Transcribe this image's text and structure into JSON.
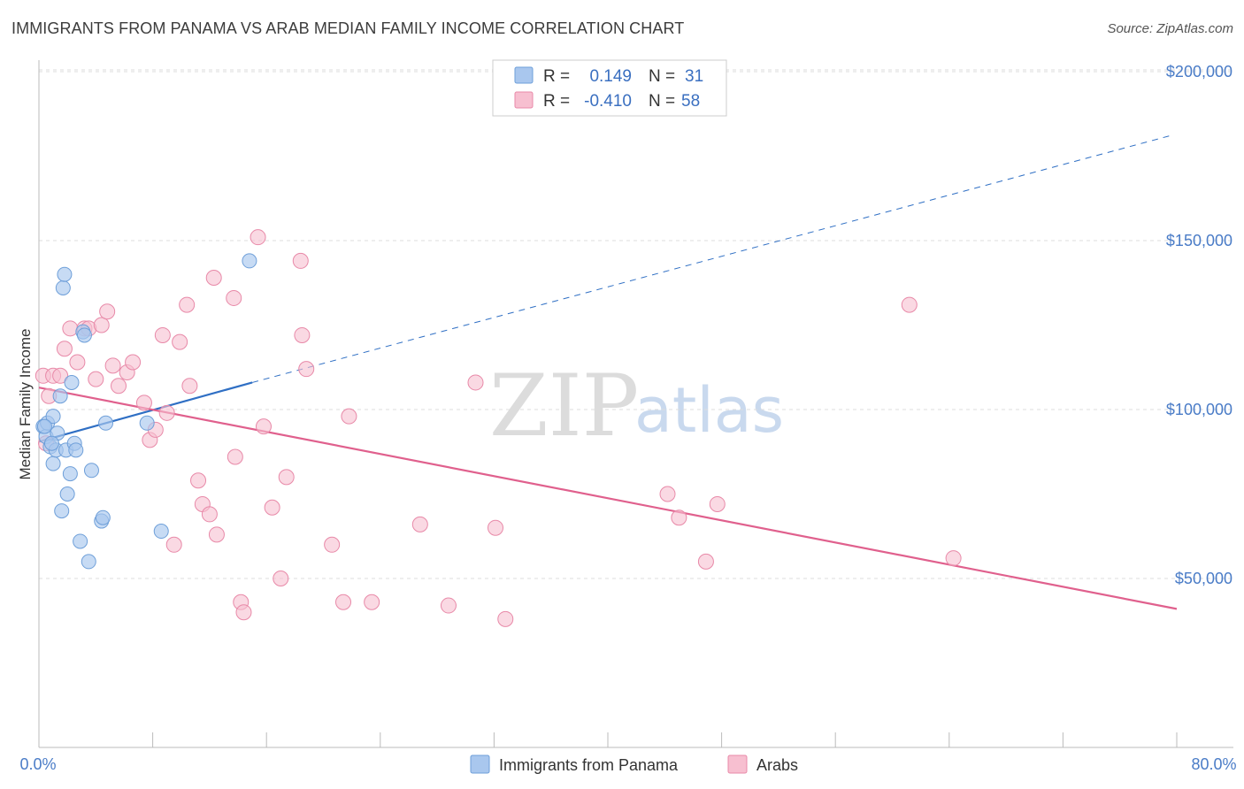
{
  "title": "IMMIGRANTS FROM PANAMA VS ARAB MEDIAN FAMILY INCOME CORRELATION CHART",
  "source": "Source: ZipAtlas.com",
  "watermark": {
    "zip": "ZIP",
    "atlas": "atlas"
  },
  "colors": {
    "panama_fill": "#a9c7ee",
    "panama_stroke": "#6e9fd9",
    "panama_line": "#2f6fc4",
    "arab_fill": "#f7bfd0",
    "arab_stroke": "#e889a8",
    "arab_line": "#e0608d",
    "grid": "#dddddd"
  },
  "legend": {
    "rows": [
      {
        "r_label": "R =",
        "r_value": "0.149",
        "n_label": "N =",
        "n_value": "31"
      },
      {
        "r_label": "R =",
        "r_value": "-0.410",
        "n_label": "N =",
        "n_value": "58"
      }
    ]
  },
  "chart_data": {
    "type": "scatter",
    "ylabel": "Median Family Income",
    "xlim": [
      0,
      80
    ],
    "ylim": [
      0,
      210000
    ],
    "x_tick_labels": [
      "0.0%",
      "80.0%"
    ],
    "y_ticks": [
      {
        "value": 50000,
        "label": "$50,000"
      },
      {
        "value": 100000,
        "label": "$100,000"
      },
      {
        "value": 150000,
        "label": "$150,000"
      },
      {
        "value": 200000,
        "label": "$200,000"
      }
    ],
    "series": [
      {
        "name": "Immigrants from Panama",
        "points": [
          [
            0.3,
            95000
          ],
          [
            0.5,
            92000
          ],
          [
            0.6,
            96000
          ],
          [
            0.8,
            89000
          ],
          [
            1.0,
            98000
          ],
          [
            1.0,
            84000
          ],
          [
            1.2,
            88000
          ],
          [
            1.3,
            93000
          ],
          [
            1.5,
            104000
          ],
          [
            1.6,
            70000
          ],
          [
            1.7,
            136000
          ],
          [
            1.8,
            140000
          ],
          [
            1.9,
            88000
          ],
          [
            2.0,
            75000
          ],
          [
            2.2,
            81000
          ],
          [
            2.3,
            108000
          ],
          [
            2.5,
            90000
          ],
          [
            2.6,
            88000
          ],
          [
            2.9,
            61000
          ],
          [
            3.1,
            123000
          ],
          [
            3.2,
            122000
          ],
          [
            3.5,
            55000
          ],
          [
            3.7,
            82000
          ],
          [
            4.4,
            67000
          ],
          [
            4.5,
            68000
          ],
          [
            4.7,
            96000
          ],
          [
            7.6,
            96000
          ],
          [
            8.6,
            64000
          ],
          [
            14.8,
            144000
          ],
          [
            0.4,
            95000
          ],
          [
            0.9,
            90000
          ]
        ],
        "trend": {
          "x0": 0,
          "y0": 90500,
          "x1": 15,
          "y1": 108000,
          "dash_x1": 79.5,
          "dash_y1": 181000
        }
      },
      {
        "name": "Arabs",
        "points": [
          [
            0.3,
            110000
          ],
          [
            0.5,
            90000
          ],
          [
            0.7,
            104000
          ],
          [
            1.0,
            110000
          ],
          [
            1.5,
            110000
          ],
          [
            1.8,
            118000
          ],
          [
            2.2,
            124000
          ],
          [
            2.7,
            114000
          ],
          [
            3.2,
            124000
          ],
          [
            3.5,
            124000
          ],
          [
            4.0,
            109000
          ],
          [
            4.4,
            125000
          ],
          [
            4.8,
            129000
          ],
          [
            5.2,
            113000
          ],
          [
            5.6,
            107000
          ],
          [
            6.2,
            111000
          ],
          [
            6.6,
            114000
          ],
          [
            7.4,
            102000
          ],
          [
            7.8,
            91000
          ],
          [
            8.2,
            94000
          ],
          [
            8.7,
            122000
          ],
          [
            9.0,
            99000
          ],
          [
            9.9,
            120000
          ],
          [
            10.4,
            131000
          ],
          [
            10.6,
            107000
          ],
          [
            11.2,
            79000
          ],
          [
            11.5,
            72000
          ],
          [
            12.0,
            69000
          ],
          [
            12.3,
            139000
          ],
          [
            12.5,
            63000
          ],
          [
            13.7,
            133000
          ],
          [
            13.8,
            86000
          ],
          [
            14.2,
            43000
          ],
          [
            14.4,
            40000
          ],
          [
            15.4,
            151000
          ],
          [
            15.8,
            95000
          ],
          [
            16.4,
            71000
          ],
          [
            17.0,
            50000
          ],
          [
            17.4,
            80000
          ],
          [
            18.4,
            144000
          ],
          [
            18.5,
            122000
          ],
          [
            18.8,
            112000
          ],
          [
            20.6,
            60000
          ],
          [
            21.4,
            43000
          ],
          [
            21.8,
            98000
          ],
          [
            23.4,
            43000
          ],
          [
            26.8,
            66000
          ],
          [
            28.8,
            42000
          ],
          [
            30.7,
            108000
          ],
          [
            32.1,
            65000
          ],
          [
            32.8,
            38000
          ],
          [
            44.2,
            75000
          ],
          [
            45.0,
            68000
          ],
          [
            46.9,
            55000
          ],
          [
            47.7,
            72000
          ],
          [
            61.2,
            131000
          ],
          [
            64.3,
            56000
          ],
          [
            9.5,
            60000
          ]
        ],
        "trend": {
          "x0": 0,
          "y0": 106500,
          "x1": 80,
          "y1": 41000
        }
      }
    ]
  }
}
